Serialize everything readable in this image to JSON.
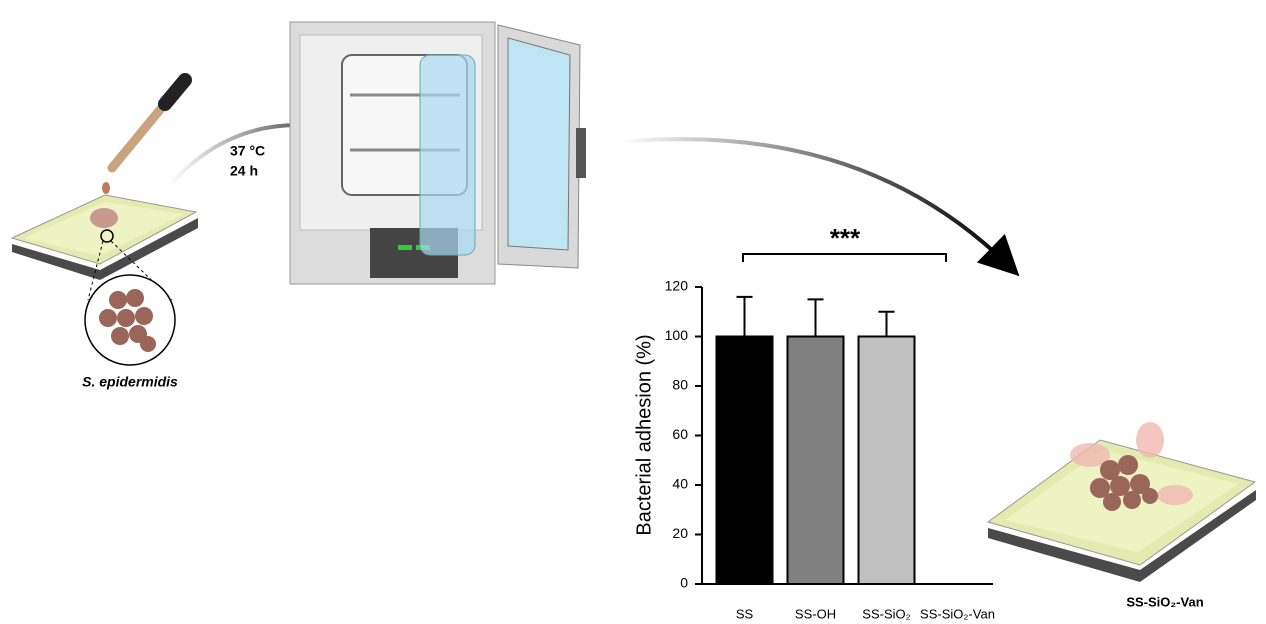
{
  "figure": {
    "incubation_temperature": "37 °C",
    "incubation_time": "24 h",
    "bacteria": "S. epidermidis",
    "result_label": "SS-SiO₂-Van"
  },
  "chart_data": {
    "type": "bar",
    "y_label": "Bacterial adhesion (%)",
    "categories": [
      "SS",
      "SS-OH",
      "SS-SiO₂",
      "SS-SiO₂-Van"
    ],
    "values": [
      100,
      100,
      100,
      0
    ],
    "errors": [
      16,
      15,
      10,
      0
    ],
    "colors": [
      "#000000",
      "#808080",
      "#c0c0c0",
      "#ffffff"
    ],
    "ylim": [
      0,
      120
    ],
    "yticks": [
      0,
      20,
      40,
      60,
      80,
      100,
      120
    ],
    "annotation": "***"
  }
}
